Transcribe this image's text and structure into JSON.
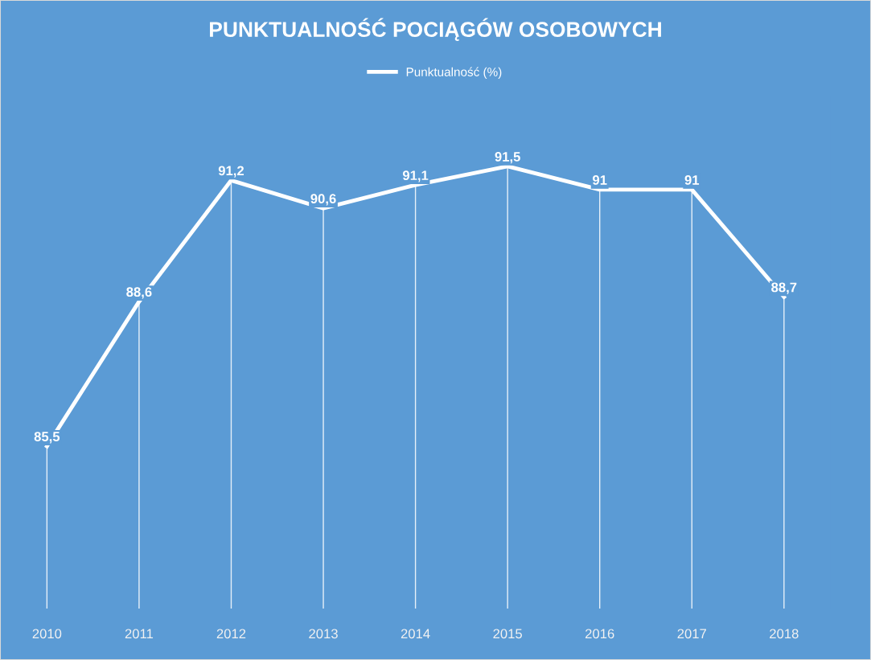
{
  "chart_data": {
    "type": "line",
    "title": "PUNKTUALNOŚĆ POCIĄGÓW OSOBOWYCH",
    "categories": [
      "2010",
      "2011",
      "2012",
      "2013",
      "2014",
      "2015",
      "2016",
      "2017",
      "2018"
    ],
    "series": [
      {
        "name": "Punktualność (%)",
        "color": "#ffffff",
        "values": [
          85.5,
          88.6,
          91.2,
          90.6,
          91.1,
          91.5,
          91,
          91,
          88.7
        ],
        "value_labels": [
          "85,5",
          "88,6",
          "91,2",
          "90,6",
          "91,1",
          "91,5",
          "91",
          "91",
          "88,7"
        ]
      }
    ],
    "legend": "top",
    "grid": "x",
    "marker": "none",
    "line_style": "solid",
    "tick_labels": "x"
  }
}
